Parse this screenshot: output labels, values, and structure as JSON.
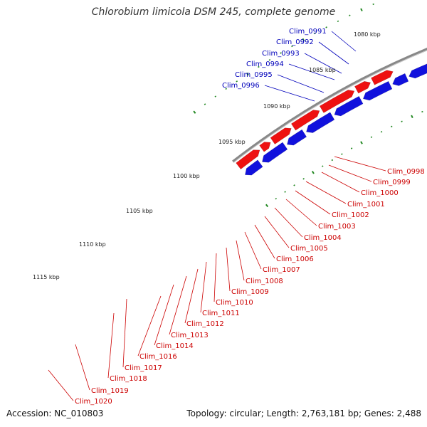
{
  "title": "Chlorobium limicola DSM 245, complete genome",
  "accession": "Accession: NC_010803",
  "stats": "Topology: circular; Length: 2,763,181 bp; Genes: 2,488",
  "colors": {
    "forward": "#ee1111",
    "reverse": "#1111dd",
    "backbone": "#888888",
    "tick": "#228822",
    "label_forward": "#cc0000",
    "label_reverse": "#0000bb"
  },
  "kbp_labels": [
    "1080 kbp",
    "1085 kbp",
    "1090 kbp",
    "1095 kbp",
    "1100 kbp",
    "1105 kbp",
    "1110 kbp",
    "1115 kbp"
  ],
  "genes_reverse": [
    "Clim_0991",
    "Clim_0992",
    "Clim_0993",
    "Clim_0994",
    "Clim_0995",
    "Clim_0996"
  ],
  "genes_forward": [
    "Clim_0998",
    "Clim_0999",
    "Clim_1000",
    "Clim_1001",
    "Clim_1002",
    "Clim_1003",
    "Clim_1004",
    "Clim_1005",
    "Clim_1006",
    "Clim_1007",
    "Clim_1008",
    "Clim_1009",
    "Clim_1010",
    "Clim_1011",
    "Clim_1012",
    "Clim_1013",
    "Clim_1014",
    "Clim_1016",
    "Clim_1017",
    "Clim_1018",
    "Clim_1019",
    "Clim_1020"
  ]
}
